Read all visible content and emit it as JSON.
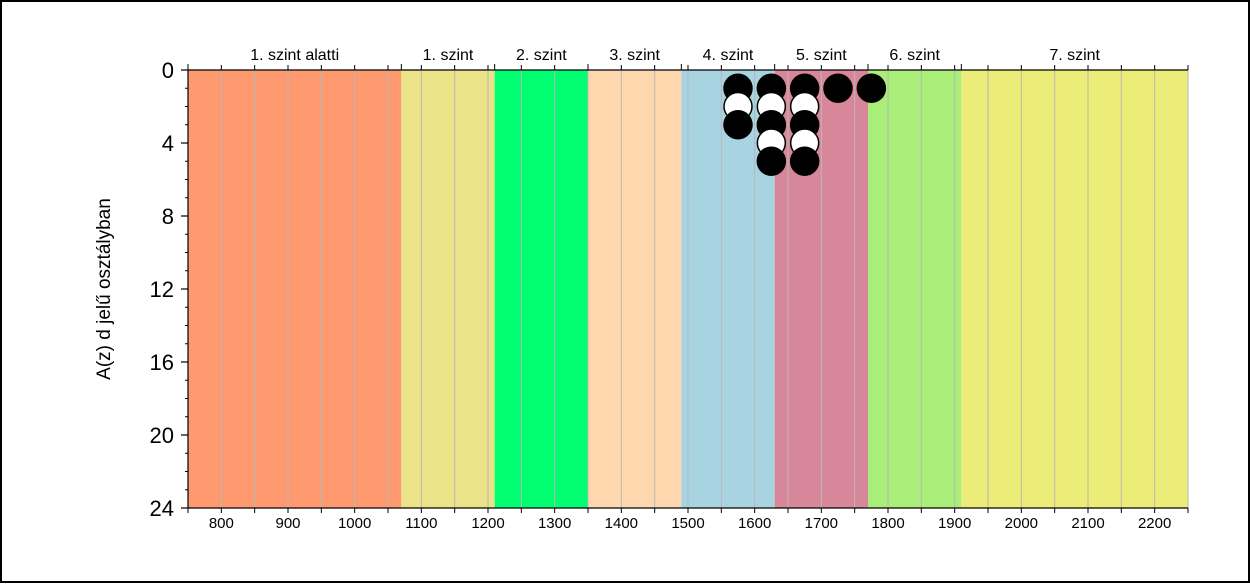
{
  "chart_data": {
    "type": "scatter",
    "title": "",
    "xlabel": "",
    "ylabel": "A(z) d jelű osztályban",
    "xlim": [
      750,
      2250
    ],
    "ylim": [
      0,
      24
    ],
    "y_inverted": true,
    "x_ticks": [
      800,
      900,
      1000,
      1100,
      1200,
      1300,
      1400,
      1500,
      1600,
      1700,
      1800,
      1900,
      2000,
      2100,
      2200
    ],
    "y_ticks": [
      0,
      4,
      8,
      12,
      16,
      20,
      24
    ],
    "bands": [
      {
        "label": "1. szint alatti",
        "from": 750,
        "to": 1070,
        "color": "#ff9a70"
      },
      {
        "label": "1. szint",
        "from": 1070,
        "to": 1210,
        "color": "#ece287"
      },
      {
        "label": "2. szint",
        "from": 1210,
        "to": 1350,
        "color": "#00ff70"
      },
      {
        "label": "3. szint",
        "from": 1350,
        "to": 1490,
        "color": "#ffd7ae"
      },
      {
        "label": "4. szint",
        "from": 1490,
        "to": 1630,
        "color": "#a8d4e2"
      },
      {
        "label": "5. szint",
        "from": 1630,
        "to": 1770,
        "color": "#d8879a"
      },
      {
        "label": "6. szint",
        "from": 1770,
        "to": 1910,
        "color": "#a8ee78"
      },
      {
        "label": "7. szint",
        "from": 1910,
        "to": 2250,
        "color": "#ecec78"
      }
    ],
    "points": [
      {
        "x": 1575,
        "y": 1,
        "fill": "black"
      },
      {
        "x": 1575,
        "y": 2,
        "fill": "white"
      },
      {
        "x": 1575,
        "y": 3,
        "fill": "black"
      },
      {
        "x": 1625,
        "y": 1,
        "fill": "black"
      },
      {
        "x": 1625,
        "y": 2,
        "fill": "white"
      },
      {
        "x": 1625,
        "y": 3,
        "fill": "black"
      },
      {
        "x": 1625,
        "y": 4,
        "fill": "white"
      },
      {
        "x": 1625,
        "y": 5,
        "fill": "black"
      },
      {
        "x": 1675,
        "y": 1,
        "fill": "black"
      },
      {
        "x": 1675,
        "y": 2,
        "fill": "white"
      },
      {
        "x": 1675,
        "y": 3,
        "fill": "black"
      },
      {
        "x": 1675,
        "y": 4,
        "fill": "white"
      },
      {
        "x": 1675,
        "y": 5,
        "fill": "black"
      },
      {
        "x": 1725,
        "y": 1,
        "fill": "black"
      },
      {
        "x": 1775,
        "y": 1,
        "fill": "black"
      }
    ],
    "grid": true
  }
}
